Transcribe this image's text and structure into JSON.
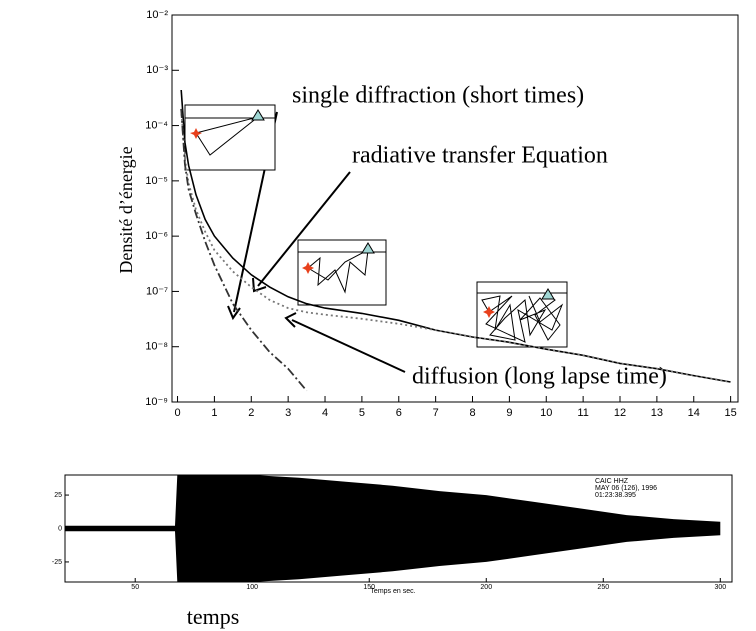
{
  "chart_data": [
    {
      "type": "line",
      "ylabel": "Densité d’énergie",
      "log_y": true,
      "xlim": [
        -0.15,
        15.2
      ],
      "xticks": [
        0,
        1,
        2,
        3,
        4,
        5,
        6,
        7,
        8,
        9,
        10,
        11,
        12,
        13,
        14,
        15
      ],
      "ylim": [
        1e-09,
        0.01
      ],
      "yticks": [
        {
          "value": 1e-09,
          "label": "10⁻⁹"
        },
        {
          "value": 1e-08,
          "label": "10⁻⁸"
        },
        {
          "value": 1e-07,
          "label": "10⁻⁷"
        },
        {
          "value": 1e-06,
          "label": "10⁻⁶"
        },
        {
          "value": 1e-05,
          "label": "10⁻⁵"
        },
        {
          "value": 0.0001,
          "label": "10⁻⁴"
        },
        {
          "value": 0.001,
          "label": "10⁻³"
        },
        {
          "value": 0.01,
          "label": "10⁻²"
        }
      ],
      "x": [
        0.1,
        0.2,
        0.3,
        0.5,
        0.75,
        1,
        1.5,
        2,
        2.5,
        3,
        3.5,
        4,
        5,
        6,
        7,
        8,
        9,
        10,
        11,
        12,
        13,
        14,
        15
      ],
      "series": [
        {
          "color": "#000000",
          "style": "solid",
          "values": [
            0.00044,
            5e-05,
            1.9e-05,
            5.6e-06,
            2e-06,
            1e-06,
            4e-07,
            2e-07,
            1.2e-07,
            8e-08,
            6e-08,
            5e-08,
            4e-08,
            3e-08,
            2e-08,
            1.5e-08,
            1.2e-08,
            9e-09,
            7e-09,
            5e-09,
            4e-09,
            3e-09,
            2.3e-09
          ]
        },
        {
          "color": "#777777",
          "style": "dotted",
          "values": [
            0.0002,
            2.5e-05,
            9e-06,
            3e-06,
            1.2e-06,
            5.6e-07,
            2.3e-07,
            1.2e-07,
            7e-08,
            5e-08,
            4.2e-08,
            3.8e-08,
            3.2e-08,
            2.6e-08,
            2e-08,
            1.5e-08,
            1.2e-08,
            9e-09,
            7e-09,
            5e-09,
            4e-09,
            3e-09,
            2.3e-09
          ]
        },
        {
          "color": "#333333",
          "style": "dashdot",
          "values": [
            0.0002,
            2e-05,
            7e-06,
            2.5e-06,
            8e-07,
            3e-07,
            6e-08,
            2e-08,
            8e-09,
            4e-09,
            1.6e-09,
            null,
            null,
            null,
            null,
            null,
            null,
            null,
            null,
            null,
            null,
            null,
            null
          ]
        }
      ],
      "annotations": [
        "single diffraction (short times)",
        "radiative transfer Equation",
        "diffusion (long lapse time)"
      ]
    },
    {
      "type": "envelope",
      "xlabel": "Temps en sec.",
      "caption": "temps",
      "annotations": [
        "CAIC   HHZ",
        "MAY 06 (126), 1996",
        "01:23:38.395"
      ],
      "xlim": [
        20,
        305
      ],
      "xticks": [
        50,
        100,
        150,
        200,
        250,
        300
      ],
      "ylim": [
        -40,
        40
      ],
      "yticks": [
        -25,
        0,
        25
      ],
      "x": [
        20,
        40,
        60,
        67,
        68,
        80,
        100,
        120,
        140,
        160,
        180,
        200,
        220,
        240,
        260,
        280,
        300
      ],
      "values": [
        2,
        2,
        2,
        2,
        40,
        40,
        40,
        38,
        35,
        32,
        28,
        25,
        20,
        15,
        10,
        7,
        5
      ],
      "color": "#000000"
    }
  ]
}
